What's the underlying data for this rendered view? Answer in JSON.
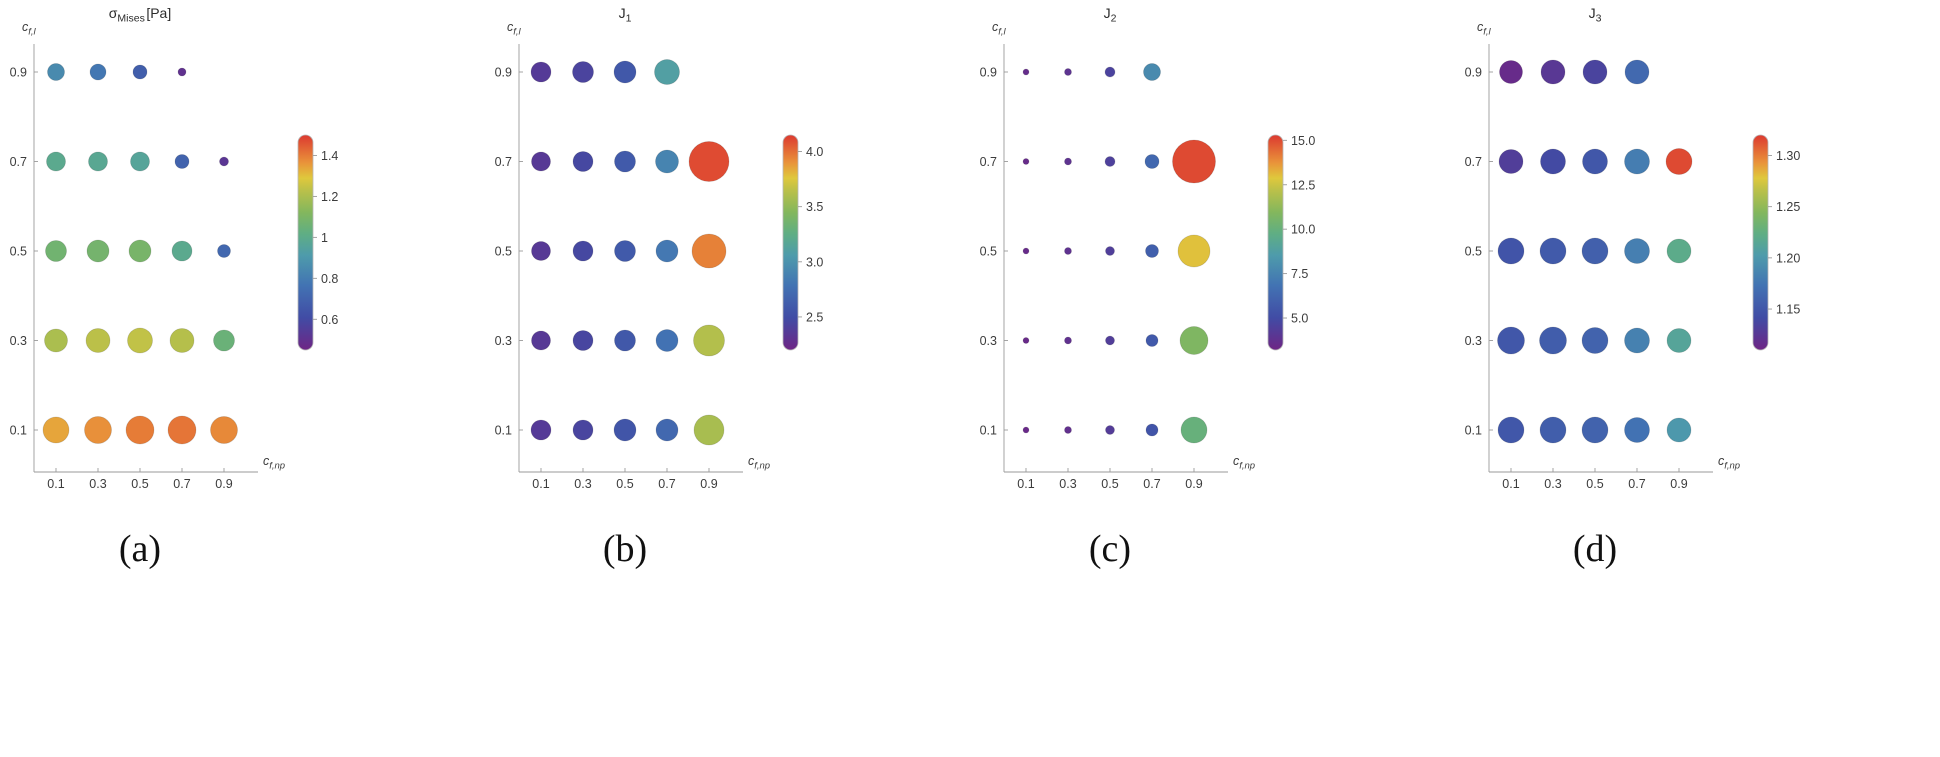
{
  "style": {
    "background": "#ffffff",
    "axis_color": "#9a9a9a",
    "tick_label_color": "#3c3c3c",
    "title_color": "#2b2b2b",
    "caption_color": "#111111",
    "colorbar_border": "#b8b8b8",
    "bubble_edge": "rgba(0,0,0,0.15)"
  },
  "captions": [
    "(a)",
    "(b)",
    "(c)",
    "(d)"
  ],
  "colormap": [
    {
      "t": 0.0,
      "color": "#6E2585"
    },
    {
      "t": 0.15,
      "color": "#414CA5"
    },
    {
      "t": 0.3,
      "color": "#4273B3"
    },
    {
      "t": 0.44,
      "color": "#4E9BAB"
    },
    {
      "t": 0.54,
      "color": "#5FAE84"
    },
    {
      "t": 0.64,
      "color": "#83B75D"
    },
    {
      "t": 0.74,
      "color": "#B9C04A"
    },
    {
      "t": 0.8,
      "color": "#DFC83C"
    },
    {
      "t": 0.87,
      "color": "#E9943A"
    },
    {
      "t": 1.0,
      "color": "#DC3930"
    }
  ],
  "chart_data": [
    {
      "type": "bubble",
      "panel": "a",
      "title": {
        "main": "σ",
        "sub": "Mises",
        "suffix": "[Pa]"
      },
      "xlabel": {
        "main": "c",
        "sub": "f,np"
      },
      "ylabel": {
        "main": "c",
        "sub": "f,l"
      },
      "x_ticks": [
        0.1,
        0.3,
        0.5,
        0.7,
        0.9
      ],
      "y_ticks": [
        0.1,
        0.3,
        0.5,
        0.7,
        0.9
      ],
      "xlim": [
        0,
        1
      ],
      "ylim": [
        0,
        1
      ],
      "grid": false,
      "legend": "colorbar-right",
      "color_range": [
        0.45,
        1.5
      ],
      "colorbar_ticks": [
        0.6,
        0.8,
        1,
        1.2,
        1.4
      ],
      "colorbar_tick_labels": [
        "0.6",
        "0.8",
        "1",
        "1.2",
        "1.4"
      ],
      "points": [
        {
          "x": 0.1,
          "y": 0.9,
          "v": 0.85,
          "r": 8.5
        },
        {
          "x": 0.3,
          "y": 0.9,
          "v": 0.78,
          "r": 8
        },
        {
          "x": 0.5,
          "y": 0.9,
          "v": 0.68,
          "r": 7
        },
        {
          "x": 0.7,
          "y": 0.9,
          "v": 0.5,
          "r": 4
        },
        {
          "x": 0.1,
          "y": 0.7,
          "v": 0.99,
          "r": 9.5
        },
        {
          "x": 0.3,
          "y": 0.7,
          "v": 0.98,
          "r": 9.5
        },
        {
          "x": 0.5,
          "y": 0.7,
          "v": 0.96,
          "r": 9.5
        },
        {
          "x": 0.7,
          "y": 0.7,
          "v": 0.7,
          "r": 7
        },
        {
          "x": 0.9,
          "y": 0.7,
          "v": 0.52,
          "r": 4.5
        },
        {
          "x": 0.1,
          "y": 0.5,
          "v": 1.07,
          "r": 10.5
        },
        {
          "x": 0.3,
          "y": 0.5,
          "v": 1.08,
          "r": 11
        },
        {
          "x": 0.5,
          "y": 0.5,
          "v": 1.09,
          "r": 11
        },
        {
          "x": 0.7,
          "y": 0.5,
          "v": 0.99,
          "r": 10
        },
        {
          "x": 0.9,
          "y": 0.5,
          "v": 0.72,
          "r": 6.5
        },
        {
          "x": 0.1,
          "y": 0.3,
          "v": 1.2,
          "r": 11.5
        },
        {
          "x": 0.3,
          "y": 0.3,
          "v": 1.23,
          "r": 12
        },
        {
          "x": 0.5,
          "y": 0.3,
          "v": 1.24,
          "r": 12.5
        },
        {
          "x": 0.7,
          "y": 0.3,
          "v": 1.22,
          "r": 12
        },
        {
          "x": 0.9,
          "y": 0.3,
          "v": 1.05,
          "r": 10.5
        },
        {
          "x": 0.1,
          "y": 0.1,
          "v": 1.34,
          "r": 13
        },
        {
          "x": 0.3,
          "y": 0.1,
          "v": 1.37,
          "r": 13.5
        },
        {
          "x": 0.5,
          "y": 0.1,
          "v": 1.4,
          "r": 14
        },
        {
          "x": 0.7,
          "y": 0.1,
          "v": 1.41,
          "r": 14
        },
        {
          "x": 0.9,
          "y": 0.1,
          "v": 1.38,
          "r": 13.5
        }
      ]
    },
    {
      "type": "bubble",
      "panel": "b",
      "title": {
        "main": "J",
        "sub": "1"
      },
      "xlabel": {
        "main": "c",
        "sub": "f,np"
      },
      "ylabel": {
        "main": "c",
        "sub": "f,l"
      },
      "x_ticks": [
        0.1,
        0.3,
        0.5,
        0.7,
        0.9
      ],
      "y_ticks": [
        0.1,
        0.3,
        0.5,
        0.7,
        0.9
      ],
      "xlim": [
        0,
        1
      ],
      "ylim": [
        0,
        1
      ],
      "grid": false,
      "legend": "colorbar-right",
      "color_range": [
        2.2,
        4.15
      ],
      "colorbar_ticks": [
        2.5,
        3.0,
        3.5,
        4.0
      ],
      "colorbar_tick_labels": [
        "2.5",
        "3.0",
        "3.5",
        "4.0"
      ],
      "points": [
        {
          "x": 0.1,
          "y": 0.9,
          "v": 2.36,
          "r": 10
        },
        {
          "x": 0.3,
          "y": 0.9,
          "v": 2.43,
          "r": 10.5
        },
        {
          "x": 0.5,
          "y": 0.9,
          "v": 2.58,
          "r": 11
        },
        {
          "x": 0.7,
          "y": 0.9,
          "v": 3.1,
          "r": 12.5
        },
        {
          "x": 0.1,
          "y": 0.7,
          "v": 2.35,
          "r": 9.5
        },
        {
          "x": 0.3,
          "y": 0.7,
          "v": 2.46,
          "r": 10
        },
        {
          "x": 0.5,
          "y": 0.7,
          "v": 2.6,
          "r": 10.5
        },
        {
          "x": 0.7,
          "y": 0.7,
          "v": 2.9,
          "r": 11.5
        },
        {
          "x": 0.9,
          "y": 0.7,
          "v": 4.1,
          "r": 20
        },
        {
          "x": 0.1,
          "y": 0.5,
          "v": 2.35,
          "r": 9.5
        },
        {
          "x": 0.3,
          "y": 0.5,
          "v": 2.46,
          "r": 10
        },
        {
          "x": 0.5,
          "y": 0.5,
          "v": 2.6,
          "r": 10.5
        },
        {
          "x": 0.7,
          "y": 0.5,
          "v": 2.82,
          "r": 11
        },
        {
          "x": 0.9,
          "y": 0.5,
          "v": 3.95,
          "r": 17
        },
        {
          "x": 0.1,
          "y": 0.3,
          "v": 2.35,
          "r": 9.5
        },
        {
          "x": 0.3,
          "y": 0.3,
          "v": 2.45,
          "r": 10
        },
        {
          "x": 0.5,
          "y": 0.3,
          "v": 2.58,
          "r": 10.5
        },
        {
          "x": 0.7,
          "y": 0.3,
          "v": 2.78,
          "r": 11
        },
        {
          "x": 0.9,
          "y": 0.3,
          "v": 3.62,
          "r": 15.5
        },
        {
          "x": 0.1,
          "y": 0.1,
          "v": 2.36,
          "r": 10
        },
        {
          "x": 0.3,
          "y": 0.1,
          "v": 2.44,
          "r": 10
        },
        {
          "x": 0.5,
          "y": 0.1,
          "v": 2.56,
          "r": 11
        },
        {
          "x": 0.7,
          "y": 0.1,
          "v": 2.7,
          "r": 11
        },
        {
          "x": 0.9,
          "y": 0.1,
          "v": 3.58,
          "r": 15
        }
      ]
    },
    {
      "type": "bubble",
      "panel": "c",
      "title": {
        "main": "J",
        "sub": "2"
      },
      "xlabel": {
        "main": "c",
        "sub": "f,np"
      },
      "ylabel": {
        "main": "c",
        "sub": "f,l"
      },
      "x_ticks": [
        0.1,
        0.3,
        0.5,
        0.7,
        0.9
      ],
      "y_ticks": [
        0.1,
        0.3,
        0.5,
        0.7,
        0.9
      ],
      "xlim": [
        0,
        1
      ],
      "ylim": [
        0,
        1
      ],
      "grid": false,
      "legend": "colorbar-right",
      "color_range": [
        3.2,
        15.3
      ],
      "colorbar_ticks": [
        5.0,
        7.5,
        10.0,
        12.5,
        15.0
      ],
      "colorbar_tick_labels": [
        "5.0",
        "7.5",
        "10.0",
        "12.5",
        "15.0"
      ],
      "points": [
        {
          "x": 0.1,
          "y": 0.9,
          "v": 3.55,
          "r": 3
        },
        {
          "x": 0.3,
          "y": 0.9,
          "v": 3.9,
          "r": 3.5
        },
        {
          "x": 0.5,
          "y": 0.9,
          "v": 4.6,
          "r": 5
        },
        {
          "x": 0.7,
          "y": 0.9,
          "v": 7.8,
          "r": 8.5
        },
        {
          "x": 0.1,
          "y": 0.7,
          "v": 3.5,
          "r": 3
        },
        {
          "x": 0.3,
          "y": 0.7,
          "v": 3.85,
          "r": 3.5
        },
        {
          "x": 0.5,
          "y": 0.7,
          "v": 4.5,
          "r": 5
        },
        {
          "x": 0.7,
          "y": 0.7,
          "v": 6.3,
          "r": 7
        },
        {
          "x": 0.9,
          "y": 0.7,
          "v": 15.0,
          "r": 21.5
        },
        {
          "x": 0.1,
          "y": 0.5,
          "v": 3.5,
          "r": 3
        },
        {
          "x": 0.3,
          "y": 0.5,
          "v": 3.8,
          "r": 3.5
        },
        {
          "x": 0.5,
          "y": 0.5,
          "v": 4.4,
          "r": 4.5
        },
        {
          "x": 0.7,
          "y": 0.5,
          "v": 5.9,
          "r": 6.5
        },
        {
          "x": 0.9,
          "y": 0.5,
          "v": 13.0,
          "r": 16
        },
        {
          "x": 0.1,
          "y": 0.3,
          "v": 3.45,
          "r": 3
        },
        {
          "x": 0.3,
          "y": 0.3,
          "v": 3.75,
          "r": 3.5
        },
        {
          "x": 0.5,
          "y": 0.3,
          "v": 4.35,
          "r": 4.5
        },
        {
          "x": 0.7,
          "y": 0.3,
          "v": 5.6,
          "r": 6
        },
        {
          "x": 0.9,
          "y": 0.3,
          "v": 10.8,
          "r": 14
        },
        {
          "x": 0.1,
          "y": 0.1,
          "v": 3.4,
          "r": 3
        },
        {
          "x": 0.3,
          "y": 0.1,
          "v": 3.7,
          "r": 3.5
        },
        {
          "x": 0.5,
          "y": 0.1,
          "v": 4.25,
          "r": 4.5
        },
        {
          "x": 0.7,
          "y": 0.1,
          "v": 5.4,
          "r": 6
        },
        {
          "x": 0.9,
          "y": 0.1,
          "v": 10.0,
          "r": 13
        }
      ]
    },
    {
      "type": "bubble",
      "panel": "d",
      "title": {
        "main": "J",
        "sub": "3"
      },
      "xlabel": {
        "main": "c",
        "sub": "f,np"
      },
      "ylabel": {
        "main": "c",
        "sub": "f,l"
      },
      "x_ticks": [
        0.1,
        0.3,
        0.5,
        0.7,
        0.9
      ],
      "y_ticks": [
        0.1,
        0.3,
        0.5,
        0.7,
        0.9
      ],
      "xlim": [
        0,
        1
      ],
      "ylim": [
        0,
        1
      ],
      "grid": false,
      "legend": "colorbar-right",
      "color_range": [
        1.11,
        1.32
      ],
      "colorbar_ticks": [
        1.15,
        1.2,
        1.25,
        1.3
      ],
      "colorbar_tick_labels": [
        "1.15",
        "1.20",
        "1.25",
        "1.30"
      ],
      "points": [
        {
          "x": 0.1,
          "y": 0.9,
          "v": 1.115,
          "r": 11.5
        },
        {
          "x": 0.3,
          "y": 0.9,
          "v": 1.125,
          "r": 12
        },
        {
          "x": 0.5,
          "y": 0.9,
          "v": 1.135,
          "r": 12
        },
        {
          "x": 0.7,
          "y": 0.9,
          "v": 1.165,
          "r": 12
        },
        {
          "x": 0.1,
          "y": 0.7,
          "v": 1.13,
          "r": 12
        },
        {
          "x": 0.3,
          "y": 0.7,
          "v": 1.14,
          "r": 12.5
        },
        {
          "x": 0.5,
          "y": 0.7,
          "v": 1.15,
          "r": 12.5
        },
        {
          "x": 0.7,
          "y": 0.7,
          "v": 1.18,
          "r": 12.5
        },
        {
          "x": 0.9,
          "y": 0.7,
          "v": 1.315,
          "r": 13
        },
        {
          "x": 0.1,
          "y": 0.5,
          "v": 1.148,
          "r": 13
        },
        {
          "x": 0.3,
          "y": 0.5,
          "v": 1.153,
          "r": 13
        },
        {
          "x": 0.5,
          "y": 0.5,
          "v": 1.158,
          "r": 13
        },
        {
          "x": 0.7,
          "y": 0.5,
          "v": 1.182,
          "r": 12.5
        },
        {
          "x": 0.9,
          "y": 0.5,
          "v": 1.22,
          "r": 12
        },
        {
          "x": 0.1,
          "y": 0.3,
          "v": 1.15,
          "r": 13.5
        },
        {
          "x": 0.3,
          "y": 0.3,
          "v": 1.155,
          "r": 13.5
        },
        {
          "x": 0.5,
          "y": 0.3,
          "v": 1.16,
          "r": 13
        },
        {
          "x": 0.7,
          "y": 0.3,
          "v": 1.183,
          "r": 12.5
        },
        {
          "x": 0.9,
          "y": 0.3,
          "v": 1.212,
          "r": 12
        },
        {
          "x": 0.1,
          "y": 0.1,
          "v": 1.15,
          "r": 13
        },
        {
          "x": 0.3,
          "y": 0.1,
          "v": 1.156,
          "r": 13
        },
        {
          "x": 0.5,
          "y": 0.1,
          "v": 1.16,
          "r": 13
        },
        {
          "x": 0.7,
          "y": 0.1,
          "v": 1.172,
          "r": 12.5
        },
        {
          "x": 0.9,
          "y": 0.1,
          "v": 1.2,
          "r": 12
        }
      ]
    }
  ]
}
